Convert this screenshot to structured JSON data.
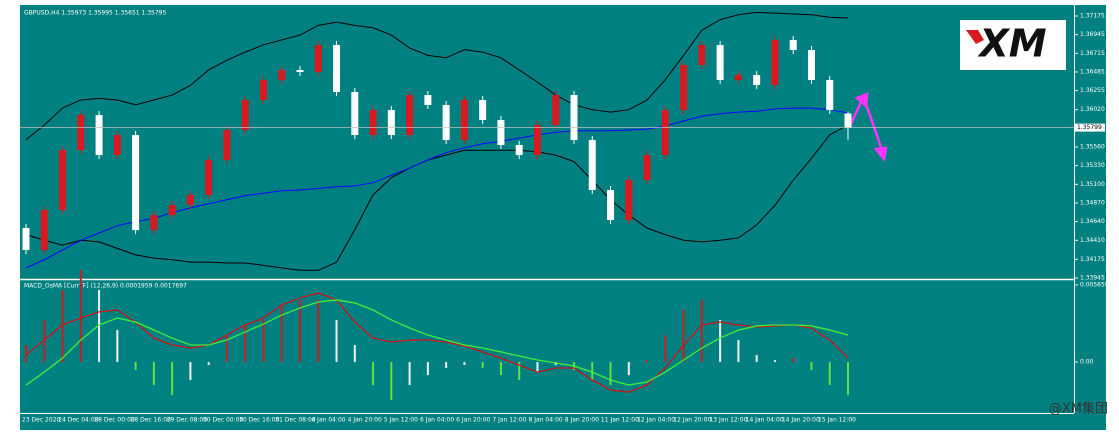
{
  "chart_data": [
    {
      "type": "candlestick",
      "title": "GBPUSD,H4  1.35973 1.35995 1.35651 1.35795",
      "open": [
        1.34561,
        1.3429,
        1.34783,
        1.35523,
        1.35954,
        1.35461,
        1.35708,
        1.34536,
        1.34721,
        1.34845,
        1.34968,
        1.354,
        1.35769,
        1.36139,
        1.36386,
        1.36509,
        1.36485,
        1.36817,
        1.36238,
        1.35708,
        1.36016,
        1.35708,
        1.36201,
        1.36078,
        1.35646,
        1.36139,
        1.35893,
        1.35585,
        1.35461,
        1.35831,
        1.36201,
        1.35646,
        1.3503,
        1.3466,
        1.35153,
        1.35461,
        1.36016,
        1.36571,
        1.36817,
        1.36386,
        1.36448,
        1.36324,
        1.36879,
        1.36756,
        1.36386,
        1.35973
      ],
      "high": [
        1.34611,
        1.34833,
        1.35573,
        1.36004,
        1.36004,
        1.35758,
        1.35758,
        1.34771,
        1.34895,
        1.35018,
        1.3545,
        1.35819,
        1.36189,
        1.36436,
        1.36559,
        1.36559,
        1.36867,
        1.36867,
        1.36288,
        1.36066,
        1.36066,
        1.36251,
        1.36251,
        1.36128,
        1.36189,
        1.36189,
        1.35943,
        1.35635,
        1.35881,
        1.36251,
        1.36251,
        1.35696,
        1.3508,
        1.35203,
        1.35511,
        1.36066,
        1.36621,
        1.36867,
        1.36867,
        1.36498,
        1.36498,
        1.36929,
        1.36929,
        1.36806,
        1.36436,
        1.35995
      ],
      "low": [
        1.3424,
        1.3424,
        1.34733,
        1.35473,
        1.35411,
        1.35411,
        1.34486,
        1.34486,
        1.34671,
        1.34795,
        1.34918,
        1.3535,
        1.35719,
        1.36089,
        1.36336,
        1.36435,
        1.36435,
        1.36188,
        1.35658,
        1.35658,
        1.35658,
        1.35658,
        1.36028,
        1.35596,
        1.35596,
        1.35843,
        1.35535,
        1.35411,
        1.35411,
        1.35781,
        1.35596,
        1.3498,
        1.3461,
        1.3461,
        1.35103,
        1.35411,
        1.35966,
        1.36521,
        1.36336,
        1.36336,
        1.36274,
        1.36274,
        1.36706,
        1.36336,
        1.35966,
        1.35651
      ],
      "close": [
        1.3429,
        1.34783,
        1.35523,
        1.35954,
        1.35461,
        1.35708,
        1.34536,
        1.34721,
        1.34845,
        1.34968,
        1.354,
        1.35769,
        1.36139,
        1.36386,
        1.36509,
        1.36485,
        1.36817,
        1.36238,
        1.35708,
        1.36016,
        1.35708,
        1.36201,
        1.36078,
        1.35646,
        1.36139,
        1.35893,
        1.35585,
        1.35461,
        1.35831,
        1.36201,
        1.35646,
        1.3503,
        1.3466,
        1.35153,
        1.35461,
        1.36016,
        1.36571,
        1.36817,
        1.36386,
        1.36448,
        1.36324,
        1.36879,
        1.36756,
        1.36386,
        1.36016,
        1.35795
      ],
      "up_color": "#d71920",
      "down_color": "#ffffff",
      "series": [
        {
          "color": "#000000",
          "values": [
            1.3565,
            1.3583,
            1.3604,
            1.3614,
            1.3616,
            1.3614,
            1.3608,
            1.3614,
            1.362,
            1.3632,
            1.3651,
            1.3663,
            1.3673,
            1.3682,
            1.3688,
            1.3694,
            1.3706,
            1.371,
            1.3706,
            1.3703,
            1.3694,
            1.3678,
            1.3669,
            1.3666,
            1.3676,
            1.3673,
            1.3666,
            1.3651,
            1.3636,
            1.362,
            1.3608,
            1.3602,
            1.3599,
            1.3602,
            1.3614,
            1.3639,
            1.3669,
            1.37,
            1.3713,
            1.3719,
            1.3722,
            1.3721,
            1.372,
            1.3719,
            1.3716,
            1.3715
          ]
        },
        {
          "color": "#000000",
          "values": [
            1.3448,
            1.3441,
            1.3435,
            1.3441,
            1.3439,
            1.3431,
            1.3423,
            1.3419,
            1.3417,
            1.3414,
            1.3414,
            1.3413,
            1.3413,
            1.341,
            1.3407,
            1.3404,
            1.3404,
            1.3414,
            1.3454,
            1.3497,
            1.3518,
            1.353,
            1.354,
            1.3546,
            1.3552,
            1.3552,
            1.3552,
            1.3552,
            1.355,
            1.3546,
            1.3538,
            1.3515,
            1.3491,
            1.3472,
            1.3456,
            1.3448,
            1.3441,
            1.3439,
            1.3441,
            1.3444,
            1.346,
            1.3484,
            1.3515,
            1.3542,
            1.3571,
            1.3583
          ]
        },
        {
          "color": "#0000ff",
          "values": [
            1.3407,
            1.3417,
            1.3429,
            1.3441,
            1.345,
            1.3459,
            1.3464,
            1.3468,
            1.3475,
            1.3481,
            1.3486,
            1.3491,
            1.3496,
            1.3499,
            1.3502,
            1.3503,
            1.3505,
            1.3507,
            1.3508,
            1.3512,
            1.3521,
            1.353,
            1.354,
            1.3549,
            1.3555,
            1.356,
            1.3563,
            1.3567,
            1.3571,
            1.3574,
            1.3576,
            1.3576,
            1.3576,
            1.3577,
            1.3578,
            1.3582,
            1.3588,
            1.3594,
            1.3597,
            1.3599,
            1.36,
            1.3603,
            1.3604,
            1.3604,
            1.3602,
            1.3598
          ]
        }
      ],
      "current_price": 1.35799,
      "ylim": [
        1.33945,
        1.37286
      ],
      "yticks": [
        1.37175,
        1.36945,
        1.36715,
        1.36485,
        1.36255,
        {
          "value": 1.3602,
          "label": "1.36020"
        },
        {
          "value": 1.3556,
          "label": "1.35560"
        },
        {
          "value": 1.3533,
          "label": "1.35330"
        },
        {
          "value": 1.351,
          "label": "1.35100"
        },
        {
          "value": 1.3487,
          "label": "1.34870"
        },
        {
          "value": 1.3464,
          "label": "1.34640"
        },
        {
          "value": 1.3441,
          "label": "1.34410"
        },
        1.34175,
        1.33945
      ],
      "x_labels": [
        "23 Dec 2020",
        "24 Dec 04:00",
        "28 Dec 00:00",
        "28 Dec 16:00",
        "29 Dec 08:00",
        "30 Dec 00:00",
        "30 Dec 16:00",
        "31 Dec 08:00",
        "4 Jan 04:00",
        "4 Jan 20:00",
        "5 Jan 12:00",
        "6 Jan 04:00",
        "6 Jan 20:00",
        "7 Jan 12:00",
        "8 Jan 04:00",
        "8 Jan 20:00",
        "11 Jan 12:00",
        "12 Jan 04:00",
        "12 Jan 20:00",
        "13 Jan 12:00",
        "14 Jan 04:00",
        "14 Jan 20:00",
        "15 Jan 12:00"
      ]
    },
    {
      "type": "macd",
      "title": "MACD_OsMA [CurrTF] (12,26,9) 0.0001959 0.0017697",
      "histogram": [
        0.00125,
        0.00309,
        0.00529,
        0.00676,
        0.00529,
        0.00235,
        -0.00059,
        -0.00169,
        -0.00243,
        -0.00132,
        -0.00022,
        0.00198,
        0.00272,
        0.00309,
        0.00419,
        0.00456,
        0.00456,
        0.00309,
        0.00125,
        -0.00169,
        -0.00279,
        -0.00169,
        -0.00096,
        -0.00044,
        -0.00022,
        -0.00044,
        -0.00096,
        -0.00132,
        -0.00073,
        -0.00022,
        -0.00059,
        -0.00132,
        -0.00169,
        -0.00096,
        0.00015,
        0.00198,
        0.00382,
        0.00456,
        0.00309,
        0.00162,
        0.00051,
        0.00015,
        0.00029,
        -0.00059,
        -0.00169,
        -0.00243
      ],
      "histogram_colors": {
        "positive_rising": "#c81e24",
        "positive_falling": "#f2f2f2",
        "negative_falling": "#66e03c",
        "negative_rising": "#f2f2f2"
      },
      "series": [
        {
          "color": "#d0141a",
          "values": [
            0.00051,
            0.00162,
            0.00272,
            0.00323,
            0.00368,
            0.00382,
            0.00294,
            0.00176,
            0.00125,
            0.00103,
            0.00125,
            0.00198,
            0.00272,
            0.00323,
            0.00419,
            0.0047,
            0.00507,
            0.00456,
            0.00294,
            0.00176,
            0.00147,
            0.00162,
            0.00162,
            0.00147,
            0.00118,
            0.00074,
            0.00029,
            -0.00022,
            -0.00074,
            -0.00044,
            -0.00044,
            -0.00132,
            -0.00206,
            -0.00221,
            -0.00169,
            -0.00044,
            0.00125,
            0.00272,
            0.00294,
            0.00272,
            0.00257,
            0.00265,
            0.00272,
            0.0025,
            0.00162,
            0.00029
          ]
        },
        {
          "color": "#3cf03c",
          "values": [
            -0.00169,
            -0.00074,
            0.00029,
            0.00162,
            0.00272,
            0.00323,
            0.00294,
            0.00235,
            0.00176,
            0.00125,
            0.00125,
            0.00162,
            0.00221,
            0.00279,
            0.00345,
            0.00397,
            0.00441,
            0.00456,
            0.00434,
            0.00382,
            0.00309,
            0.0025,
            0.00198,
            0.00162,
            0.00125,
            0.00103,
            0.00074,
            0.00044,
            0.00015,
            -7e-05,
            -0.00029,
            -0.00074,
            -0.00132,
            -0.00169,
            -0.00147,
            -0.00074,
            0.00015,
            0.00103,
            0.00176,
            0.00235,
            0.00265,
            0.00272,
            0.00272,
            0.00265,
            0.00235,
            0.00198
          ]
        }
      ],
      "ylim": [
        -0.00367,
        0.00595
      ],
      "yticks": [
        0.005659,
        {
          "value": 0,
          "label": "0.00"
        }
      ]
    }
  ],
  "logo": "XM",
  "watermark": "@XM集团"
}
